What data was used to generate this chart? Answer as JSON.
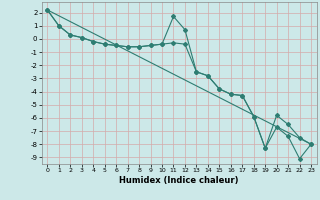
{
  "xlabel": "Humidex (Indice chaleur)",
  "xlim": [
    -0.5,
    23.5
  ],
  "ylim": [
    -9.5,
    2.8
  ],
  "yticks": [
    2,
    1,
    0,
    -1,
    -2,
    -3,
    -4,
    -5,
    -6,
    -7,
    -8,
    -9
  ],
  "xticks": [
    0,
    1,
    2,
    3,
    4,
    5,
    6,
    7,
    8,
    9,
    10,
    11,
    12,
    13,
    14,
    15,
    16,
    17,
    18,
    19,
    20,
    21,
    22,
    23
  ],
  "background_color": "#cce8e8",
  "grid_color": "#b0d4d4",
  "line_color": "#2e7d72",
  "line1": {
    "x": [
      0,
      1,
      2,
      3,
      4,
      5,
      6,
      7,
      8,
      9,
      10,
      11,
      12,
      13,
      14,
      15,
      16,
      17,
      18,
      19,
      20,
      21,
      22,
      23
    ],
    "y": [
      2.2,
      1.0,
      0.3,
      0.1,
      -0.2,
      -0.4,
      -0.5,
      -0.6,
      -0.6,
      -0.5,
      -0.4,
      1.7,
      0.7,
      -2.5,
      -2.8,
      -3.8,
      -4.2,
      -4.3,
      -5.9,
      -8.3,
      -6.7,
      -7.4,
      -9.1,
      -8.0
    ]
  },
  "line2": {
    "x": [
      0,
      1,
      2,
      3,
      4,
      5,
      6,
      7,
      8,
      9,
      10,
      11,
      12,
      13,
      14,
      15,
      16,
      17,
      18,
      19,
      20,
      21,
      22,
      23
    ],
    "y": [
      2.2,
      1.0,
      0.3,
      0.1,
      -0.2,
      -0.4,
      -0.5,
      -0.6,
      -0.6,
      -0.5,
      -0.4,
      -0.3,
      -0.4,
      -2.5,
      -2.8,
      -3.8,
      -4.2,
      -4.3,
      -5.9,
      -8.3,
      -5.8,
      -6.5,
      -7.5,
      -8.0
    ]
  },
  "line3": {
    "x": [
      0,
      23
    ],
    "y": [
      2.2,
      -8.0
    ]
  }
}
